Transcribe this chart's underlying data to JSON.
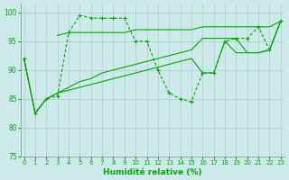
{
  "title": "",
  "xlabel": "Humidité relative (%)",
  "ylabel": "",
  "bg_color": "#cceae9",
  "line_color": "#00aa00",
  "grid_color": "#aacccc",
  "ylim": [
    75,
    101.5
  ],
  "xlim": [
    -0.3,
    23.3
  ],
  "yticks": [
    75,
    80,
    85,
    90,
    95,
    100
  ],
  "xticks": [
    0,
    1,
    2,
    3,
    4,
    5,
    6,
    7,
    8,
    9,
    10,
    11,
    12,
    13,
    14,
    15,
    16,
    17,
    18,
    19,
    20,
    21,
    22,
    23
  ],
  "series": [
    {
      "x": [
        0,
        1,
        2,
        3,
        4,
        5,
        6,
        7,
        8,
        9,
        10,
        11,
        12,
        13,
        14,
        15,
        16,
        17,
        18,
        19,
        20,
        21,
        22,
        23
      ],
      "y": [
        92,
        82.5,
        85,
        85.5,
        96.5,
        99.5,
        99,
        99,
        99,
        99,
        95,
        95,
        90,
        86,
        85,
        84.5,
        89.5,
        89.5,
        95,
        95.5,
        95.5,
        97.5,
        93.5,
        98.5
      ],
      "marker": true,
      "linestyle": "dashed"
    },
    {
      "x": [
        3,
        4,
        5,
        6,
        7,
        8,
        9,
        10,
        11,
        12,
        13,
        14,
        15,
        16,
        17,
        18,
        19,
        20,
        21,
        22,
        23
      ],
      "y": [
        96,
        96.5,
        96.5,
        96.5,
        96.5,
        96.5,
        96.5,
        97,
        97,
        97,
        97,
        97,
        97,
        97.5,
        97.5,
        97.5,
        97.5,
        97.5,
        97.5,
        97.5,
        98.5
      ],
      "marker": false,
      "linestyle": "solid"
    },
    {
      "x": [
        0,
        1,
        2,
        3,
        4,
        5,
        6,
        7,
        8,
        9,
        10,
        11,
        12,
        13,
        14,
        15,
        16,
        17,
        18,
        19,
        20,
        21,
        22,
        23
      ],
      "y": [
        92,
        82.5,
        85,
        86,
        86.5,
        87,
        87.5,
        88,
        88.5,
        89,
        89.5,
        90,
        90.5,
        91,
        91.5,
        92,
        89.5,
        89.5,
        95,
        93,
        93,
        93,
        93.5,
        98.5
      ],
      "marker": false,
      "linestyle": "solid"
    },
    {
      "x": [
        0,
        1,
        2,
        3,
        4,
        5,
        6,
        7,
        8,
        9,
        10,
        11,
        12,
        13,
        14,
        15,
        16,
        17,
        18,
        19,
        20,
        21,
        22,
        23
      ],
      "y": [
        92,
        82.5,
        85,
        86,
        87,
        88,
        88.5,
        89.5,
        90,
        90.5,
        91,
        91.5,
        92,
        92.5,
        93,
        93.5,
        95.5,
        95.5,
        95.5,
        95.5,
        93,
        93,
        93.5,
        98.5
      ],
      "marker": false,
      "linestyle": "solid"
    }
  ]
}
